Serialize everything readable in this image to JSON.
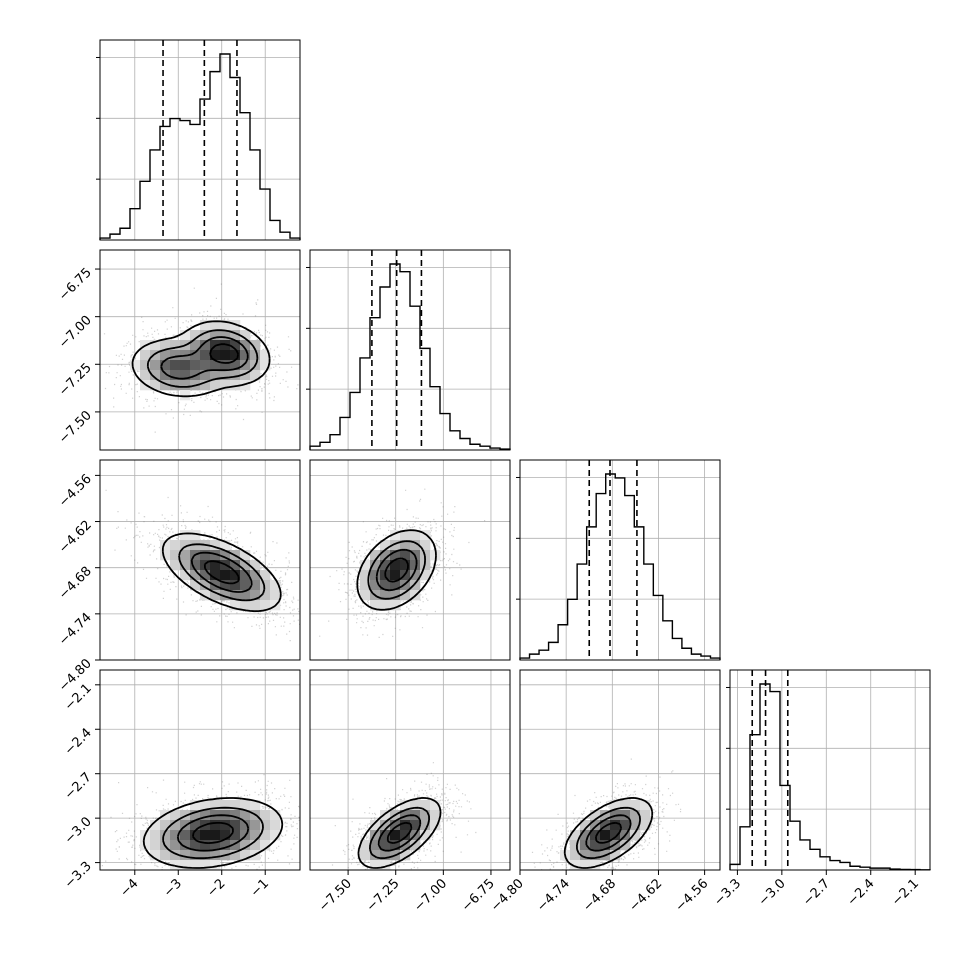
{
  "chart_data": {
    "type": "corner",
    "grid": true,
    "parameters": [
      {
        "range": [
          -4.8,
          -0.2
        ],
        "ticks": [
          -4,
          -3,
          -2,
          -1
        ],
        "tick_labels": [
          "−4",
          "−3",
          "−2",
          "−1"
        ],
        "quantiles": [
          -3.35,
          -2.4,
          -1.65
        ],
        "hist_counts": [
          0.01,
          0.03,
          0.06,
          0.16,
          0.3,
          0.46,
          0.58,
          0.62,
          0.61,
          0.59,
          0.72,
          0.86,
          0.95,
          0.83,
          0.65,
          0.46,
          0.26,
          0.1,
          0.04,
          0.01
        ]
      },
      {
        "range": [
          -7.7,
          -6.65
        ],
        "ticks": [
          -7.5,
          -7.25,
          -7.0,
          -6.75
        ],
        "tick_labels": [
          "−7.50",
          "−7.25",
          "−7.00",
          "−6.75"
        ],
        "quantiles": [
          -7.375,
          -7.245,
          -7.115
        ],
        "hist_counts": [
          0.02,
          0.04,
          0.08,
          0.17,
          0.3,
          0.48,
          0.69,
          0.85,
          0.97,
          0.93,
          0.75,
          0.53,
          0.33,
          0.19,
          0.1,
          0.06,
          0.03,
          0.02,
          0.01,
          0.005
        ]
      },
      {
        "range": [
          -4.8,
          -4.54
        ],
        "ticks": [
          -4.8,
          -4.74,
          -4.68,
          -4.62,
          -4.56
        ],
        "tick_labels": [
          "−4.80",
          "−4.74",
          "−4.68",
          "−4.62",
          "−4.56"
        ],
        "quantiles": [
          -4.71,
          -4.683,
          -4.648
        ],
        "hist_counts": [
          0.01,
          0.03,
          0.05,
          0.09,
          0.18,
          0.31,
          0.49,
          0.68,
          0.85,
          0.95,
          0.93,
          0.84,
          0.68,
          0.49,
          0.33,
          0.2,
          0.11,
          0.06,
          0.03,
          0.02,
          0.01
        ]
      },
      {
        "range": [
          -3.35,
          -2.0
        ],
        "ticks": [
          -3.3,
          -3.0,
          -2.7,
          -2.4,
          -2.1
        ],
        "tick_labels": [
          "−3.3",
          "−3.0",
          "−2.7",
          "−2.4",
          "−2.1"
        ],
        "quantiles": [
          -3.2,
          -3.11,
          -2.96
        ],
        "hist_counts": [
          0.03,
          0.23,
          0.72,
          0.99,
          0.95,
          0.45,
          0.26,
          0.16,
          0.11,
          0.07,
          0.05,
          0.04,
          0.02,
          0.015,
          0.01,
          0.01,
          0.005,
          0.003,
          0.002,
          0.001
        ]
      }
    ],
    "pairs": [
      {
        "x": 0,
        "y": 1,
        "density": [
          {
            "mean": [
              -3.0,
              -7.27
            ],
            "cov": [
              [
                0.28,
                -0.006
              ],
              [
                -0.006,
                0.0055
              ]
            ],
            "weight": 0.45
          },
          {
            "mean": [
              -1.9,
              -7.19
            ],
            "cov": [
              [
                0.22,
                -0.008
              ],
              [
                -0.008,
                0.006
              ]
            ],
            "weight": 0.55
          }
        ]
      },
      {
        "x": 0,
        "y": 2,
        "density": [
          {
            "mean": [
              -2.0,
              -4.686
            ],
            "cov": [
              [
                0.4,
                -0.0085
              ],
              [
                -0.0085,
                0.00055
              ]
            ],
            "weight": 1.0
          }
        ]
      },
      {
        "x": 1,
        "y": 2,
        "density": [
          {
            "mean": [
              -7.245,
              -4.683
            ],
            "cov": [
              [
                0.0092,
                0.00085
              ],
              [
                0.00085,
                0.00058
              ]
            ],
            "weight": 1.0
          }
        ]
      },
      {
        "x": 0,
        "y": 3,
        "density": [
          {
            "mean": [
              -2.2,
              -3.1
            ],
            "cov": [
              [
                0.55,
                0.02
              ],
              [
                0.02,
                0.012
              ]
            ],
            "weight": 1.0
          }
        ]
      },
      {
        "x": 1,
        "y": 3,
        "density": [
          {
            "mean": [
              -7.23,
              -3.1
            ],
            "cov": [
              [
                0.01,
                0.0065
              ],
              [
                0.0065,
                0.012
              ]
            ],
            "weight": 1.0
          }
        ]
      },
      {
        "x": 2,
        "y": 3,
        "density": [
          {
            "mean": [
              -4.685,
              -3.1
            ],
            "cov": [
              [
                0.0007,
                0.0016
              ],
              [
                0.0016,
                0.012
              ]
            ],
            "weight": 1.0
          }
        ]
      }
    ],
    "contour_levels": [
      0.1,
      0.3,
      0.55,
      0.82
    ]
  }
}
